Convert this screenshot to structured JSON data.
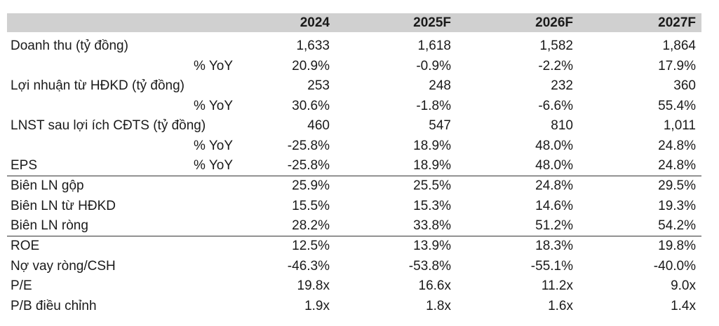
{
  "table": {
    "headers": [
      "",
      "2024",
      "2025F",
      "2026F",
      "2027F"
    ],
    "rows": [
      {
        "label": "Doanh thu (tỷ đồng)",
        "sub": "",
        "values": [
          "1,633",
          "1,618",
          "1,582",
          "1,864"
        ]
      },
      {
        "label": "",
        "sub": "% YoY",
        "values": [
          "20.9%",
          "-0.9%",
          "-2.2%",
          "17.9%"
        ]
      },
      {
        "label": "Lợi nhuận từ HĐKD (tỷ đồng)",
        "sub": "",
        "values": [
          "253",
          "248",
          "232",
          "360"
        ]
      },
      {
        "label": "",
        "sub": "% YoY",
        "values": [
          "30.6%",
          "-1.8%",
          "-6.6%",
          "55.4%"
        ]
      },
      {
        "label": "LNST sau lợi ích CĐTS (tỷ đồng)",
        "sub": "",
        "values": [
          "460",
          "547",
          "810",
          "1,011"
        ]
      },
      {
        "label": "",
        "sub": "% YoY",
        "values": [
          "-25.8%",
          "18.9%",
          "48.0%",
          "24.8%"
        ]
      },
      {
        "label": "EPS",
        "sub": "% YoY",
        "values": [
          "-25.8%",
          "18.9%",
          "48.0%",
          "24.8%"
        ]
      },
      {
        "label": "Biên LN gộp",
        "sub": "",
        "values": [
          "25.9%",
          "25.5%",
          "24.8%",
          "29.5%"
        ]
      },
      {
        "label": "Biên LN từ HĐKD",
        "sub": "",
        "values": [
          "15.5%",
          "15.3%",
          "14.6%",
          "19.3%"
        ]
      },
      {
        "label": "Biên LN ròng",
        "sub": "",
        "values": [
          "28.2%",
          "33.8%",
          "51.2%",
          "54.2%"
        ]
      },
      {
        "label": "ROE",
        "sub": "",
        "values": [
          "12.5%",
          "13.9%",
          "18.3%",
          "19.8%"
        ]
      },
      {
        "label": "Nợ vay ròng/CSH",
        "sub": "",
        "values": [
          "-46.3%",
          "-53.8%",
          "-55.1%",
          "-40.0%"
        ]
      },
      {
        "label": "P/E",
        "sub": "",
        "values": [
          "19.8x",
          "16.6x",
          "11.2x",
          "9.0x"
        ]
      },
      {
        "label": "P/B điều chỉnh",
        "sub": "",
        "values": [
          "1.9x",
          "1.8x",
          "1.6x",
          "1.4x"
        ]
      }
    ]
  }
}
